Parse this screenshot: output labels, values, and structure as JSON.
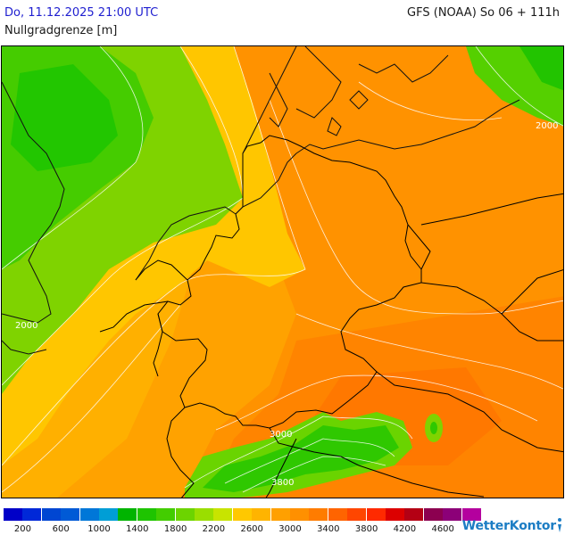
{
  "header": {
    "datetime": "Do, 11.12.2025 21:00 UTC",
    "variable": "Nullgradgrenze [m]",
    "model": "GFS (NOAA) So 06 + 111h"
  },
  "map": {
    "contour_labels": [
      "2000",
      "2000",
      "3000",
      "3800"
    ],
    "colors": {
      "green_dark": "#22cc00",
      "green": "#55d400",
      "green_light": "#8ed800",
      "yellow": "#ffcc00",
      "orange_light": "#ffa500",
      "orange": "#ff9200",
      "orange_dark": "#ff7a00",
      "red_orange": "#ff5a00",
      "border": "#000000",
      "coast": "#111111",
      "isoline": "#ffffff"
    }
  },
  "legend": {
    "colors": [
      "#0000c8",
      "#0028d8",
      "#0046d2",
      "#005ad6",
      "#0077d8",
      "#009ed6",
      "#00b400",
      "#1ec400",
      "#43cd00",
      "#6cd400",
      "#9ade00",
      "#c8e400",
      "#ffc800",
      "#ffb400",
      "#ffa000",
      "#ff9000",
      "#ff7c00",
      "#ff6400",
      "#ff4600",
      "#ff2a00",
      "#dc0000",
      "#b40014",
      "#8c0050",
      "#8c0078",
      "#b4009e"
    ],
    "ticks": [
      "200",
      "600",
      "1000",
      "1400",
      "1800",
      "2200",
      "2600",
      "3000",
      "3400",
      "3800",
      "4200",
      "4600"
    ]
  },
  "brand": {
    "part1": "Wetter",
    "part2": "Kontor"
  }
}
